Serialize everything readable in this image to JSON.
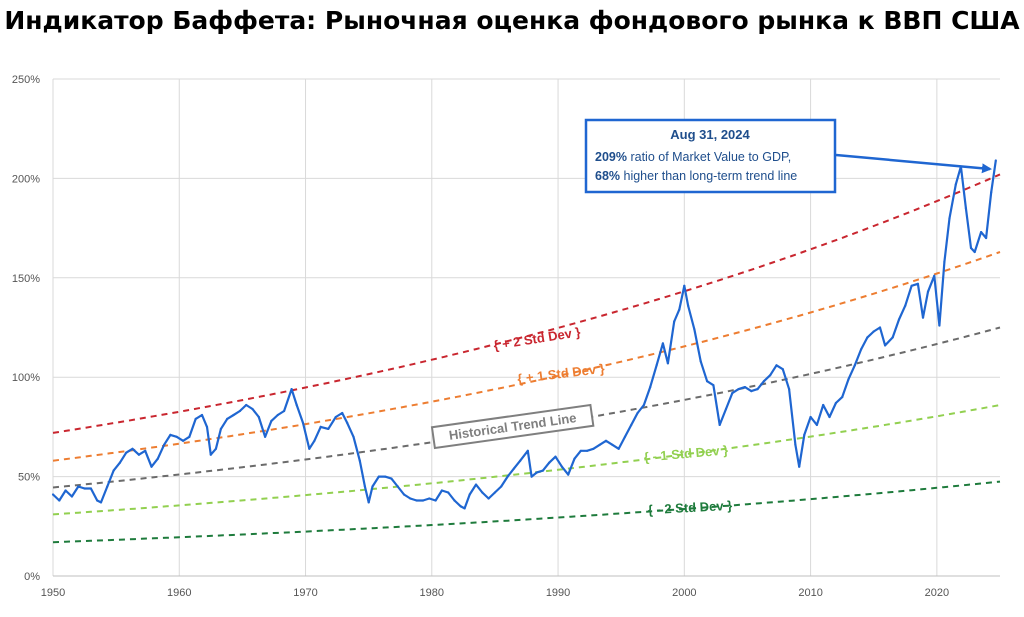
{
  "page": {
    "title": "Индикатор Баффета: Рыночная оценка фондового рынка к ВВП США"
  },
  "colors": {
    "series": "#1f66d1",
    "plus2": "#c9262f",
    "plus1": "#ed7d31",
    "trend": "#6b6b6b",
    "minus1": "#92d050",
    "minus2": "#1e7b3c",
    "annotation": "#1f66d1"
  },
  "chart_data": {
    "type": "line",
    "title": "Индикатор Баффета: Рыночная оценка фондового рынка к ВВП США",
    "xlabel": "",
    "ylabel": "",
    "xlim": [
      1950,
      2025
    ],
    "ylim": [
      0,
      250
    ],
    "x_ticks": [
      1950,
      1960,
      1970,
      1980,
      1990,
      2000,
      2010,
      2020
    ],
    "y_ticks": [
      0,
      50,
      100,
      150,
      200,
      250
    ],
    "y_tick_suffix": "%",
    "grid": true,
    "series": [
      {
        "key": "ratio",
        "values": [
          [
            1950.0,
            41
          ],
          [
            1950.5,
            38
          ],
          [
            1951.0,
            43
          ],
          [
            1951.5,
            40
          ],
          [
            1952.0,
            45
          ],
          [
            1952.5,
            44
          ],
          [
            1953.0,
            44
          ],
          [
            1953.5,
            38
          ],
          [
            1953.8,
            37
          ],
          [
            1954.3,
            45
          ],
          [
            1954.8,
            53
          ],
          [
            1955.3,
            57
          ],
          [
            1955.8,
            62
          ],
          [
            1956.3,
            64
          ],
          [
            1956.8,
            61
          ],
          [
            1957.3,
            63
          ],
          [
            1957.8,
            55
          ],
          [
            1958.3,
            59
          ],
          [
            1958.8,
            66
          ],
          [
            1959.3,
            71
          ],
          [
            1959.8,
            70
          ],
          [
            1960.3,
            68
          ],
          [
            1960.8,
            70
          ],
          [
            1961.3,
            79
          ],
          [
            1961.8,
            81
          ],
          [
            1962.2,
            75
          ],
          [
            1962.5,
            61
          ],
          [
            1962.9,
            64
          ],
          [
            1963.3,
            74
          ],
          [
            1963.8,
            79
          ],
          [
            1964.3,
            81
          ],
          [
            1964.8,
            83
          ],
          [
            1965.3,
            86
          ],
          [
            1965.8,
            84
          ],
          [
            1966.3,
            80
          ],
          [
            1966.8,
            70
          ],
          [
            1967.3,
            78
          ],
          [
            1967.8,
            81
          ],
          [
            1968.3,
            83
          ],
          [
            1968.9,
            94
          ],
          [
            1969.3,
            86
          ],
          [
            1969.8,
            77
          ],
          [
            1970.3,
            64
          ],
          [
            1970.7,
            68
          ],
          [
            1971.2,
            75
          ],
          [
            1971.8,
            74
          ],
          [
            1972.4,
            80
          ],
          [
            1972.9,
            82
          ],
          [
            1973.3,
            77
          ],
          [
            1973.8,
            70
          ],
          [
            1974.3,
            58
          ],
          [
            1974.7,
            45
          ],
          [
            1975.0,
            37
          ],
          [
            1975.3,
            45
          ],
          [
            1975.8,
            50
          ],
          [
            1976.3,
            50
          ],
          [
            1976.8,
            49
          ],
          [
            1977.3,
            45
          ],
          [
            1977.8,
            41
          ],
          [
            1978.3,
            39
          ],
          [
            1978.8,
            38
          ],
          [
            1979.3,
            38
          ],
          [
            1979.8,
            39
          ],
          [
            1980.3,
            38
          ],
          [
            1980.8,
            43
          ],
          [
            1981.3,
            42
          ],
          [
            1981.8,
            38
          ],
          [
            1982.3,
            35
          ],
          [
            1982.6,
            34
          ],
          [
            1983.0,
            41
          ],
          [
            1983.5,
            46
          ],
          [
            1984.0,
            42
          ],
          [
            1984.5,
            39
          ],
          [
            1985.0,
            42
          ],
          [
            1985.5,
            45
          ],
          [
            1986.0,
            50
          ],
          [
            1986.5,
            54
          ],
          [
            1987.0,
            58
          ],
          [
            1987.6,
            63
          ],
          [
            1987.9,
            50
          ],
          [
            1988.3,
            52
          ],
          [
            1988.8,
            53
          ],
          [
            1989.3,
            57
          ],
          [
            1989.8,
            60
          ],
          [
            1990.3,
            55
          ],
          [
            1990.8,
            51
          ],
          [
            1991.3,
            59
          ],
          [
            1991.8,
            63
          ],
          [
            1992.3,
            63
          ],
          [
            1992.8,
            64
          ],
          [
            1993.3,
            66
          ],
          [
            1993.8,
            68
          ],
          [
            1994.3,
            66
          ],
          [
            1994.8,
            64
          ],
          [
            1995.3,
            70
          ],
          [
            1995.8,
            76
          ],
          [
            1996.3,
            82
          ],
          [
            1996.8,
            86
          ],
          [
            1997.3,
            95
          ],
          [
            1997.8,
            106
          ],
          [
            1998.3,
            117
          ],
          [
            1998.7,
            107
          ],
          [
            1999.2,
            128
          ],
          [
            1999.6,
            134
          ],
          [
            2000.0,
            146
          ],
          [
            2000.3,
            136
          ],
          [
            2000.8,
            124
          ],
          [
            2001.3,
            108
          ],
          [
            2001.8,
            98
          ],
          [
            2002.3,
            96
          ],
          [
            2002.8,
            76
          ],
          [
            2003.3,
            84
          ],
          [
            2003.8,
            92
          ],
          [
            2004.3,
            94
          ],
          [
            2004.8,
            95
          ],
          [
            2005.3,
            93
          ],
          [
            2005.8,
            94
          ],
          [
            2006.3,
            98
          ],
          [
            2006.8,
            101
          ],
          [
            2007.3,
            106
          ],
          [
            2007.8,
            104
          ],
          [
            2008.3,
            94
          ],
          [
            2008.8,
            66
          ],
          [
            2009.1,
            55
          ],
          [
            2009.5,
            71
          ],
          [
            2010.0,
            80
          ],
          [
            2010.5,
            76
          ],
          [
            2011.0,
            86
          ],
          [
            2011.5,
            80
          ],
          [
            2012.0,
            87
          ],
          [
            2012.5,
            90
          ],
          [
            2013.0,
            99
          ],
          [
            2013.5,
            106
          ],
          [
            2014.0,
            114
          ],
          [
            2014.5,
            120
          ],
          [
            2015.0,
            123
          ],
          [
            2015.5,
            125
          ],
          [
            2015.9,
            116
          ],
          [
            2016.5,
            120
          ],
          [
            2017.0,
            129
          ],
          [
            2017.5,
            136
          ],
          [
            2018.0,
            146
          ],
          [
            2018.5,
            147
          ],
          [
            2018.9,
            130
          ],
          [
            2019.3,
            143
          ],
          [
            2019.8,
            151
          ],
          [
            2020.2,
            126
          ],
          [
            2020.6,
            158
          ],
          [
            2021.0,
            180
          ],
          [
            2021.5,
            197
          ],
          [
            2021.9,
            206
          ],
          [
            2022.3,
            185
          ],
          [
            2022.7,
            165
          ],
          [
            2023.0,
            163
          ],
          [
            2023.5,
            173
          ],
          [
            2023.9,
            170
          ],
          [
            2024.3,
            193
          ],
          [
            2024.67,
            209
          ]
        ]
      },
      {
        "key": "plus2",
        "name": "+ 2 Std Dev",
        "start": 72,
        "end": 202
      },
      {
        "key": "plus1",
        "name": "+ 1 Std Dev",
        "start": 58,
        "end": 163
      },
      {
        "key": "trend",
        "name": "Historical Trend Line",
        "start": 44.5,
        "end": 125
      },
      {
        "key": "minus1",
        "name": "- 1 Std Dev",
        "start": 31,
        "end": 86
      },
      {
        "key": "minus2",
        "name": "- 2 Std Dev",
        "start": 17,
        "end": 47.5
      }
    ],
    "annotations": [
      {
        "title": "Aug 31, 2024",
        "line1_bold": "209%",
        "line1_rest": " ratio of Market Value to GDP,",
        "line2_bold": "68%",
        "line2_rest": " higher than long-term trend line",
        "points_to": [
          2024.67,
          209
        ]
      }
    ]
  }
}
